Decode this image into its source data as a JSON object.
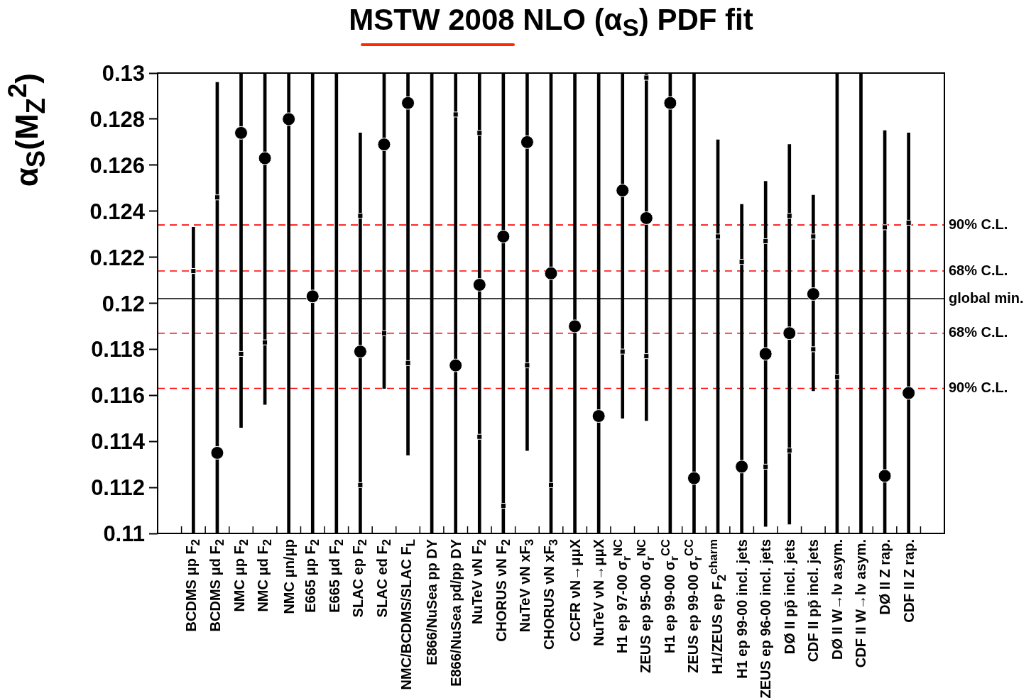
{
  "chart_data": {
    "type": "scatter",
    "title": "MSTW 2008 NLO (α$_{S}$) PDF fit",
    "ylabel": "α$_{S}$(M$_{Z}$$^{2}$)",
    "categories": [
      null,
      "BCDMS μp F$_{2}$",
      "BCDMS μd F$_{2}$",
      "NMC μp F$_{2}$",
      "NMC μd F$_{2}$",
      "NMC μn/μp",
      "E665 μp F$_{2}$",
      "E665 μd F$_{2}$",
      "SLAC ep F$_{2}$",
      "SLAC ed F$_{2}$",
      "NMC/BCDMS/SLAC F$_{L}$",
      "E866/NuSea pp DY",
      "E866/NuSea pd/pp DY",
      "NuTeV νN F$_{2}$",
      "CHORUS νN F$_{2}$",
      "NuTeV νN xF$_{3}$",
      "CHORUS νN xF$_{3}$",
      "CCFR νN→μμX",
      "NuTeV νN→μμX",
      "H1 ep 97-00 σ$_{r}$$^{NC}$",
      "ZEUS ep 95-00 σ$_{r}$$^{NC}$",
      "H1 ep 99-00 σ$_{r}$$^{CC}$",
      "ZEUS ep 99-00 σ$_{r}$$^{CC}$",
      "H1/ZEUS ep F$_{2}$$^{charm}$",
      "H1 ep 99-00 incl. jets",
      "ZEUS ep 96-00 incl. jets",
      "DØ II pp̄ incl. jets",
      "CDF II pp̄ incl. jets",
      "DØ II W→lν asym.",
      "CDF II W→lν asym.",
      "DØ II Z rap.",
      "CDF II Z rap.",
      null
    ],
    "series": [
      {
        "type": "bar",
        "color": "#000000",
        "base": [
          null,
          0.11,
          0.11,
          0.1146,
          0.1156,
          0.11,
          0.11,
          0.11,
          0.11,
          0.1163,
          0.1134,
          0.11,
          0.11,
          0.11,
          0.11,
          0.1136,
          0.11,
          0.11,
          0.11,
          0.115,
          0.1149,
          0.11,
          0.11,
          0.11,
          0.11,
          0.1103,
          0.1104,
          0.1162,
          0.11,
          0.11,
          0.11,
          0.11,
          null
        ],
        "values": [
          null,
          0.0133,
          0.0196,
          0.0154,
          0.0144,
          0.02,
          0.02,
          0.02,
          0.0174,
          0.0137,
          0.0166,
          0.02,
          0.02,
          0.02,
          0.02,
          0.0164,
          0.02,
          0.02,
          0.02,
          0.015,
          0.0151,
          0.02,
          0.02,
          0.0171,
          0.0143,
          0.015,
          0.0165,
          0.0085,
          0.02,
          0.02,
          0.0175,
          0.0174,
          null
        ]
      },
      {
        "type": "scatter",
        "color": "#000000",
        "marker": "circle",
        "values": [
          null,
          null,
          0.1135,
          0.1274,
          0.1263,
          0.128,
          0.1203,
          null,
          0.1179,
          0.1269,
          0.1287,
          null,
          0.1173,
          0.1208,
          0.1229,
          0.127,
          0.1213,
          0.119,
          0.1151,
          0.1249,
          0.1237,
          0.1287,
          0.1124,
          null,
          0.1129,
          0.1178,
          0.1187,
          0.1204,
          null,
          null,
          0.1125,
          0.1161,
          null
        ]
      },
      {
        "type": "scatter",
        "color": "#000000",
        "marker": "square",
        "x": [
          "BCDMS μp F$_{2}$",
          "BCDMS μd F$_{2}$",
          "NMC μp F$_{2}$",
          "NMC μd F$_{2}$",
          "SLAC ep F$_{2}$",
          "SLAC ep F$_{2}$",
          "SLAC ed F$_{2}$",
          "NMC/BCDMS/SLAC F$_{L}$",
          "E866/NuSea pd/pp DY",
          "NuTeV νN F$_{2}$",
          "NuTeV νN F$_{2}$",
          "CHORUS νN F$_{2}$",
          "NuTeV νN xF$_{3}$",
          "CHORUS νN xF$_{3}$",
          "H1 ep 97-00 σ$_{r}$$^{NC}$",
          "ZEUS ep 95-00 σ$_{r}$$^{NC}$",
          "ZEUS ep 95-00 σ$_{r}$$^{NC}$",
          "H1/ZEUS ep F$_{2}$$^{charm}$",
          "H1 ep 99-00 incl. jets",
          "ZEUS ep 96-00 incl. jets",
          "ZEUS ep 96-00 incl. jets",
          "DØ II pp̄ incl. jets",
          "DØ II pp̄ incl. jets",
          "CDF II pp̄ incl. jets",
          "CDF II pp̄ incl. jets",
          "DØ II W→lν asym.",
          "DØ II Z rap.",
          "CDF II Z rap."
        ],
        "values": [
          0.1214,
          0.1246,
          0.1178,
          0.1183,
          0.1238,
          0.1121,
          0.1187,
          0.1174,
          0.1282,
          0.1274,
          0.1142,
          0.1112,
          0.1173,
          0.1121,
          0.1179,
          0.1298,
          0.1177,
          0.1229,
          0.1218,
          0.1227,
          0.1129,
          0.1238,
          0.1136,
          0.1229,
          0.118,
          0.1168,
          0.1233,
          0.1235
        ]
      }
    ],
    "ylim": [
      0.11,
      0.13
    ],
    "yticks": [
      0.11,
      0.112,
      0.114,
      0.116,
      0.118,
      0.12,
      0.122,
      0.124,
      0.126,
      0.128,
      0.13
    ],
    "ref_lines": [
      {
        "axis": "y",
        "value": 0.1234,
        "label": "90% C.L.",
        "color": "#ff0000",
        "line_style": "dashed"
      },
      {
        "axis": "y",
        "value": 0.1214,
        "label": "68% C.L.",
        "color": "#ff0000",
        "line_style": "dashed"
      },
      {
        "axis": "y",
        "value": 0.1202,
        "label": "global min.",
        "color": "#000000",
        "line_style": "solid"
      },
      {
        "axis": "y",
        "value": 0.1187,
        "label": "68% C.L.",
        "color": "#ff0000",
        "line_style": "dashed"
      },
      {
        "axis": "y",
        "value": 0.1163,
        "label": "90% C.L.",
        "color": "#ff0000",
        "line_style": "dashed"
      }
    ],
    "grid": false,
    "legend": false
  }
}
